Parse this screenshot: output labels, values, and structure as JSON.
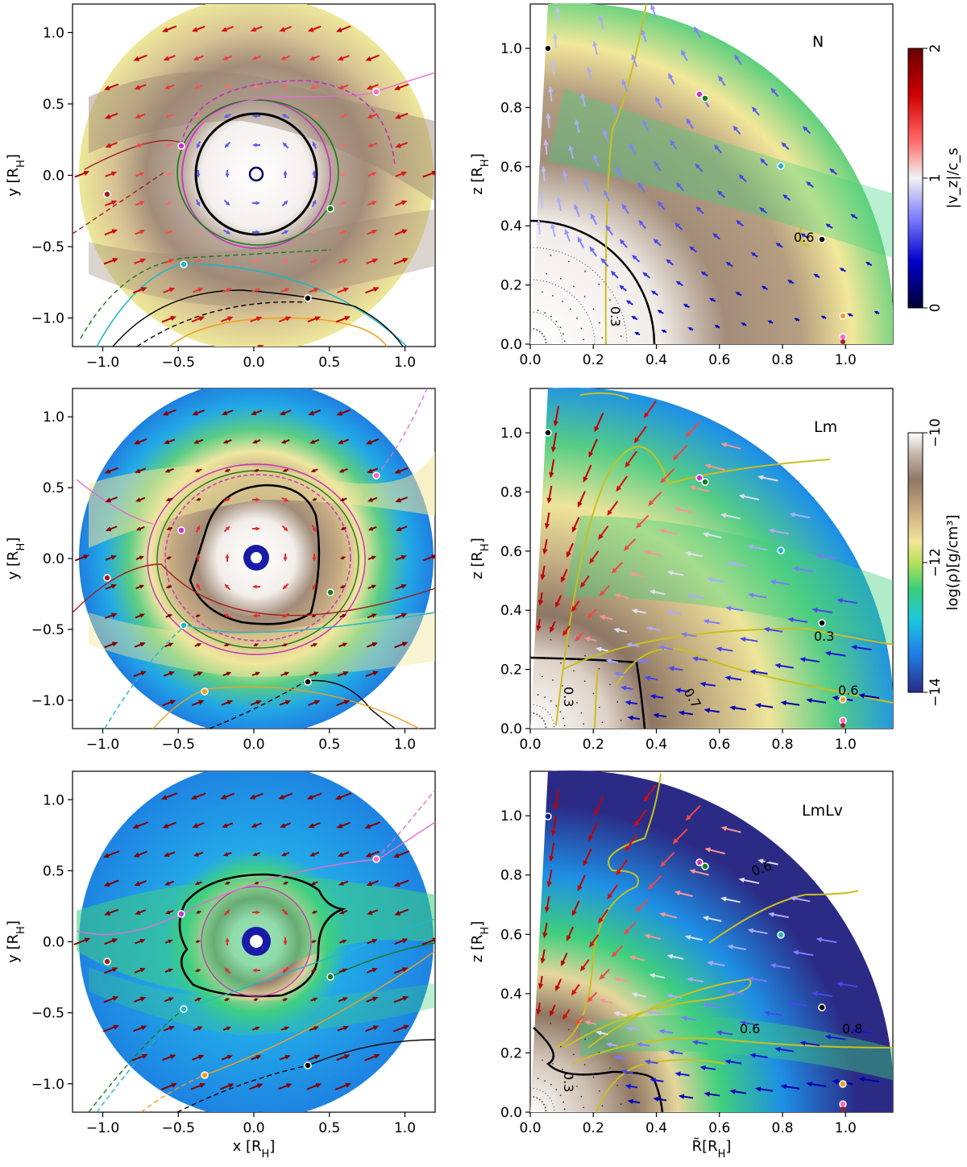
{
  "figure": {
    "left_panels": {
      "xlabel": "x [R_H]",
      "ylabel": "y [R_H]",
      "xlim": [
        -1.2,
        1.2
      ],
      "ylim": [
        -1.2,
        1.2
      ],
      "xticks": [
        "−1.0",
        "−0.5",
        "0.0",
        "0.5",
        "1.0"
      ],
      "yticks": [
        "−1.0",
        "−0.5",
        "0.0",
        "0.5",
        "1.0"
      ]
    },
    "right_panels": {
      "xlabel": "R̃[R_H]",
      "ylabel": "z [R_H]",
      "xlim": [
        0,
        1.15
      ],
      "ylim": [
        0,
        1.15
      ],
      "xticks": [
        "0.0",
        "0.2",
        "0.4",
        "0.6",
        "0.8",
        "1.0"
      ],
      "yticks": [
        "0.0",
        "0.2",
        "0.4",
        "0.6",
        "0.8",
        "1.0"
      ]
    },
    "colorbar_velocity": {
      "label": "|v_z|/c_s",
      "range": [
        0,
        2
      ],
      "ticks": [
        "0",
        "1",
        "2"
      ],
      "colors": [
        "#000033",
        "#0000cc",
        "#8080ff",
        "#f2f2f2",
        "#ff6666",
        "#d00000",
        "#660000"
      ]
    },
    "colorbar_density": {
      "label": "log(ρ)[g/cm³]",
      "range": [
        -14,
        -10
      ],
      "ticks": [
        "−14",
        "−12",
        "−10"
      ],
      "colors": [
        "#2b2b86",
        "#1f7fe6",
        "#1cc7e0",
        "#3ccf7a",
        "#b8e05a",
        "#f3e69a",
        "#c8ab80",
        "#8f7763",
        "#c6b8ae",
        "#ffffff"
      ]
    }
  },
  "chart_data": [
    {
      "type": "heatmap",
      "model": "N",
      "panel": "left",
      "view": "midplane x-y",
      "xlim": [
        -1.2,
        1.2
      ],
      "ylim": [
        -1.2,
        1.2
      ],
      "bound_radius": 0.38,
      "background_density": "yellow-green",
      "labels": []
    },
    {
      "type": "heatmap",
      "model": "N",
      "panel": "right",
      "view": "meridional R-z",
      "xlim": [
        0,
        1.15
      ],
      "ylim": [
        0,
        1.15
      ],
      "contour_labels": [
        {
          "text": "0.6",
          "x": 0.88,
          "y": 0.43
        },
        {
          "text": "0.3",
          "x": 0.24,
          "y": 0.12
        }
      ],
      "bound_radius": 0.4
    },
    {
      "type": "heatmap",
      "model": "Lm",
      "panel": "left",
      "view": "midplane x-y",
      "xlim": [
        -1.2,
        1.2
      ],
      "ylim": [
        -1.2,
        1.2
      ],
      "bound_radius": 0.33,
      "background_density": "blue-green",
      "labels": []
    },
    {
      "type": "heatmap",
      "model": "Lm",
      "panel": "right",
      "view": "meridional R-z",
      "xlim": [
        0,
        1.15
      ],
      "ylim": [
        0,
        1.15
      ],
      "contour_labels": [
        {
          "text": "0.3",
          "x": 1.0,
          "y": 0.33
        },
        {
          "text": "0.6",
          "x": 1.02,
          "y": 0.15
        },
        {
          "text": "0.7",
          "x": 0.53,
          "y": 0.18
        },
        {
          "text": "0.3",
          "x": 0.07,
          "y": 0.16
        }
      ],
      "bound_radius": 0.4
    },
    {
      "type": "heatmap",
      "model": "LmLv",
      "panel": "left",
      "view": "midplane x-y",
      "xlim": [
        -1.2,
        1.2
      ],
      "ylim": [
        -1.2,
        1.2
      ],
      "bound_radius": 0.3,
      "background_density": "blue",
      "labels": []
    },
    {
      "type": "heatmap",
      "model": "LmLv",
      "panel": "right",
      "view": "meridional R-z",
      "xlim": [
        0,
        1.15
      ],
      "ylim": [
        0,
        1.15
      ],
      "contour_labels": [
        {
          "text": "0.6",
          "x": 0.72,
          "y": 0.64
        },
        {
          "text": "0.6",
          "x": 0.7,
          "y": 0.19
        },
        {
          "text": "0.8",
          "x": 1.05,
          "y": 0.19
        },
        {
          "text": "0.3",
          "x": 0.07,
          "y": 0.1
        }
      ],
      "bound_radius": 0.42
    }
  ],
  "models": [
    "N",
    "Lm",
    "LmLv"
  ]
}
